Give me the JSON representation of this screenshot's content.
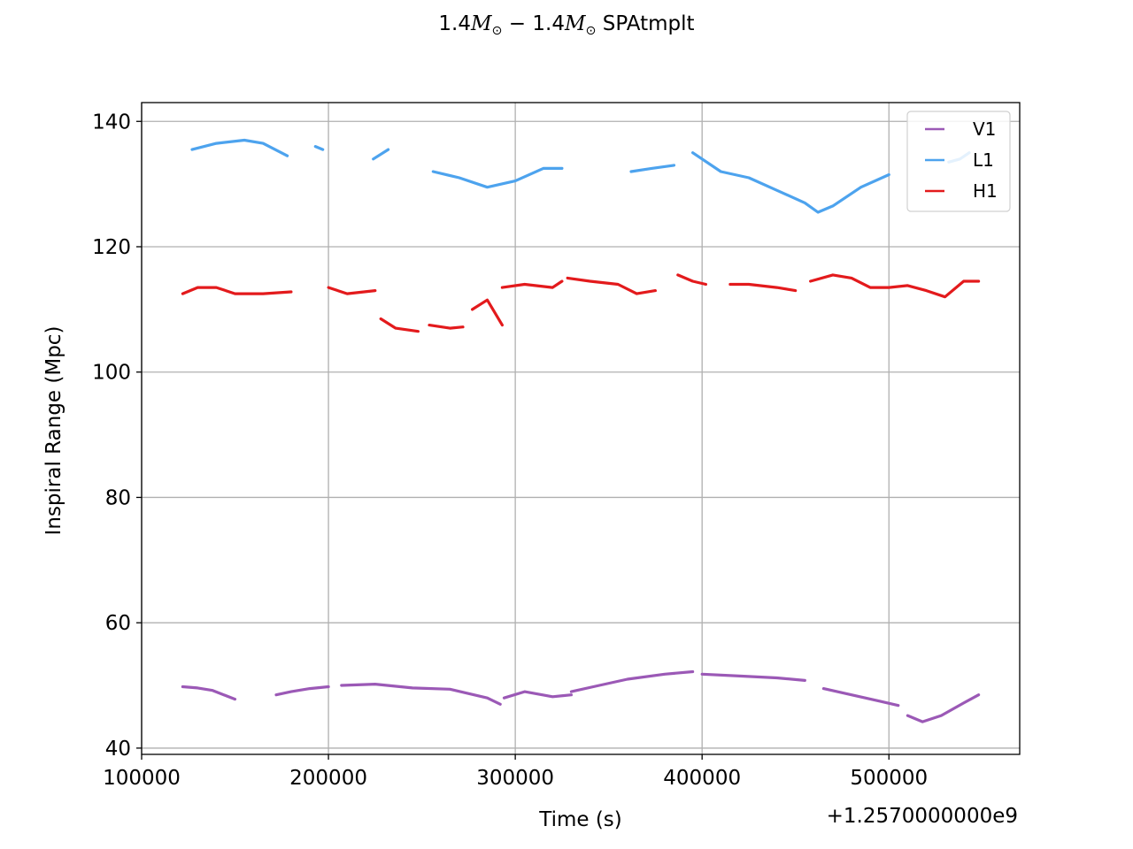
{
  "title": {
    "coef_a": "1.4",
    "mass_symbol_a": "M",
    "sun_a": "⊙",
    "minus": " − ",
    "coef_b": "1.4",
    "mass_symbol_b": "M",
    "sun_b": "⊙",
    "suffix": " SPAtmplt"
  },
  "chart_data": {
    "type": "line",
    "xlabel": "Time (s)",
    "ylabel": "Inspiral Range (Mpc)",
    "x_offset_label": "+1.2570000000e9",
    "xlim": [
      100000,
      570000
    ],
    "ylim": [
      39,
      143
    ],
    "xticks": [
      100000,
      200000,
      300000,
      400000,
      500000
    ],
    "xtick_labels": [
      "100000",
      "200000",
      "300000",
      "400000",
      "500000"
    ],
    "yticks": [
      40,
      60,
      80,
      100,
      120,
      140
    ],
    "ytick_labels": [
      "40",
      "60",
      "80",
      "100",
      "120",
      "140"
    ],
    "grid": true,
    "legend_position": "top-right",
    "series": [
      {
        "name": "V1",
        "color": "#9b59b6",
        "segments": [
          {
            "x": [
              122000,
              130000,
              138000,
              144000,
              150000
            ],
            "y": [
              49.8,
              49.6,
              49.2,
              48.5,
              47.8
            ]
          },
          {
            "x": [
              172000,
              180000,
              190000,
              200000
            ],
            "y": [
              48.5,
              49.0,
              49.5,
              49.8
            ]
          },
          {
            "x": [
              207000,
              225000,
              245000,
              265000,
              285000,
              292000
            ],
            "y": [
              50.0,
              50.2,
              49.6,
              49.4,
              48.0,
              47.0
            ]
          },
          {
            "x": [
              294000,
              305000,
              320000,
              330000
            ],
            "y": [
              48.0,
              49.0,
              48.2,
              48.5
            ]
          },
          {
            "x": [
              330000,
              345000,
              360000,
              380000,
              395000
            ],
            "y": [
              49.0,
              50.0,
              51.0,
              51.8,
              52.2
            ]
          },
          {
            "x": [
              400000,
              420000,
              440000,
              455000
            ],
            "y": [
              51.8,
              51.5,
              51.2,
              50.8
            ]
          },
          {
            "x": [
              465000,
              480000,
              495000,
              505000
            ],
            "y": [
              49.5,
              48.5,
              47.5,
              46.8
            ]
          },
          {
            "x": [
              510000,
              518000,
              528000,
              540000,
              548000
            ],
            "y": [
              45.2,
              44.2,
              45.2,
              47.2,
              48.5
            ]
          }
        ]
      },
      {
        "name": "L1",
        "color": "#4da3ee",
        "segments": [
          {
            "x": [
              127000,
              140000,
              155000,
              165000,
              178000
            ],
            "y": [
              135.5,
              136.5,
              137.0,
              136.5,
              134.5
            ]
          },
          {
            "x": [
              193000,
              197000
            ],
            "y": [
              136.0,
              135.5
            ]
          },
          {
            "x": [
              224000,
              232000
            ],
            "y": [
              134.0,
              135.5
            ]
          },
          {
            "x": [
              256000,
              270000,
              285000,
              300000,
              315000,
              325000
            ],
            "y": [
              132.0,
              131.0,
              129.5,
              130.5,
              132.5,
              132.5
            ]
          },
          {
            "x": [
              362000,
              373000,
              385000
            ],
            "y": [
              132.0,
              132.5,
              133.0
            ]
          },
          {
            "x": [
              395000,
              410000,
              425000,
              440000,
              455000,
              462000,
              470000,
              485000,
              500000
            ],
            "y": [
              135.0,
              132.0,
              131.0,
              129.0,
              127.0,
              125.5,
              126.5,
              129.5,
              131.5
            ]
          },
          {
            "x": [
              532000,
              538000,
              543000
            ],
            "y": [
              133.5,
              134.0,
              135.0
            ]
          }
        ]
      },
      {
        "name": "H1",
        "color": "#e31a1c",
        "segments": [
          {
            "x": [
              122000,
              130000,
              140000,
              150000,
              165000,
              180000
            ],
            "y": [
              112.5,
              113.5,
              113.5,
              112.5,
              112.5,
              112.8
            ]
          },
          {
            "x": [
              200000,
              210000,
              225000
            ],
            "y": [
              113.5,
              112.5,
              113.0
            ]
          },
          {
            "x": [
              228000,
              236000,
              248000
            ],
            "y": [
              108.5,
              107.0,
              106.5
            ]
          },
          {
            "x": [
              254000,
              265000,
              272000
            ],
            "y": [
              107.5,
              107.0,
              107.2
            ]
          },
          {
            "x": [
              277000,
              285000,
              293000
            ],
            "y": [
              110.0,
              111.5,
              107.5
            ]
          },
          {
            "x": [
              293000,
              305000,
              320000,
              325000
            ],
            "y": [
              113.5,
              114.0,
              113.5,
              114.5
            ]
          },
          {
            "x": [
              328000,
              340000,
              355000,
              365000,
              375000
            ],
            "y": [
              115.0,
              114.5,
              114.0,
              112.5,
              113.0
            ]
          },
          {
            "x": [
              387000,
              395000,
              402000
            ],
            "y": [
              115.5,
              114.5,
              114.0
            ]
          },
          {
            "x": [
              415000,
              425000,
              440000,
              450000
            ],
            "y": [
              114.0,
              114.0,
              113.5,
              113.0
            ]
          },
          {
            "x": [
              458000,
              470000,
              480000,
              490000,
              500000,
              510000,
              520000,
              530000,
              540000,
              548000
            ],
            "y": [
              114.5,
              115.5,
              115.0,
              113.5,
              113.5,
              113.8,
              113.0,
              112.0,
              114.5,
              114.5
            ]
          }
        ]
      }
    ]
  }
}
